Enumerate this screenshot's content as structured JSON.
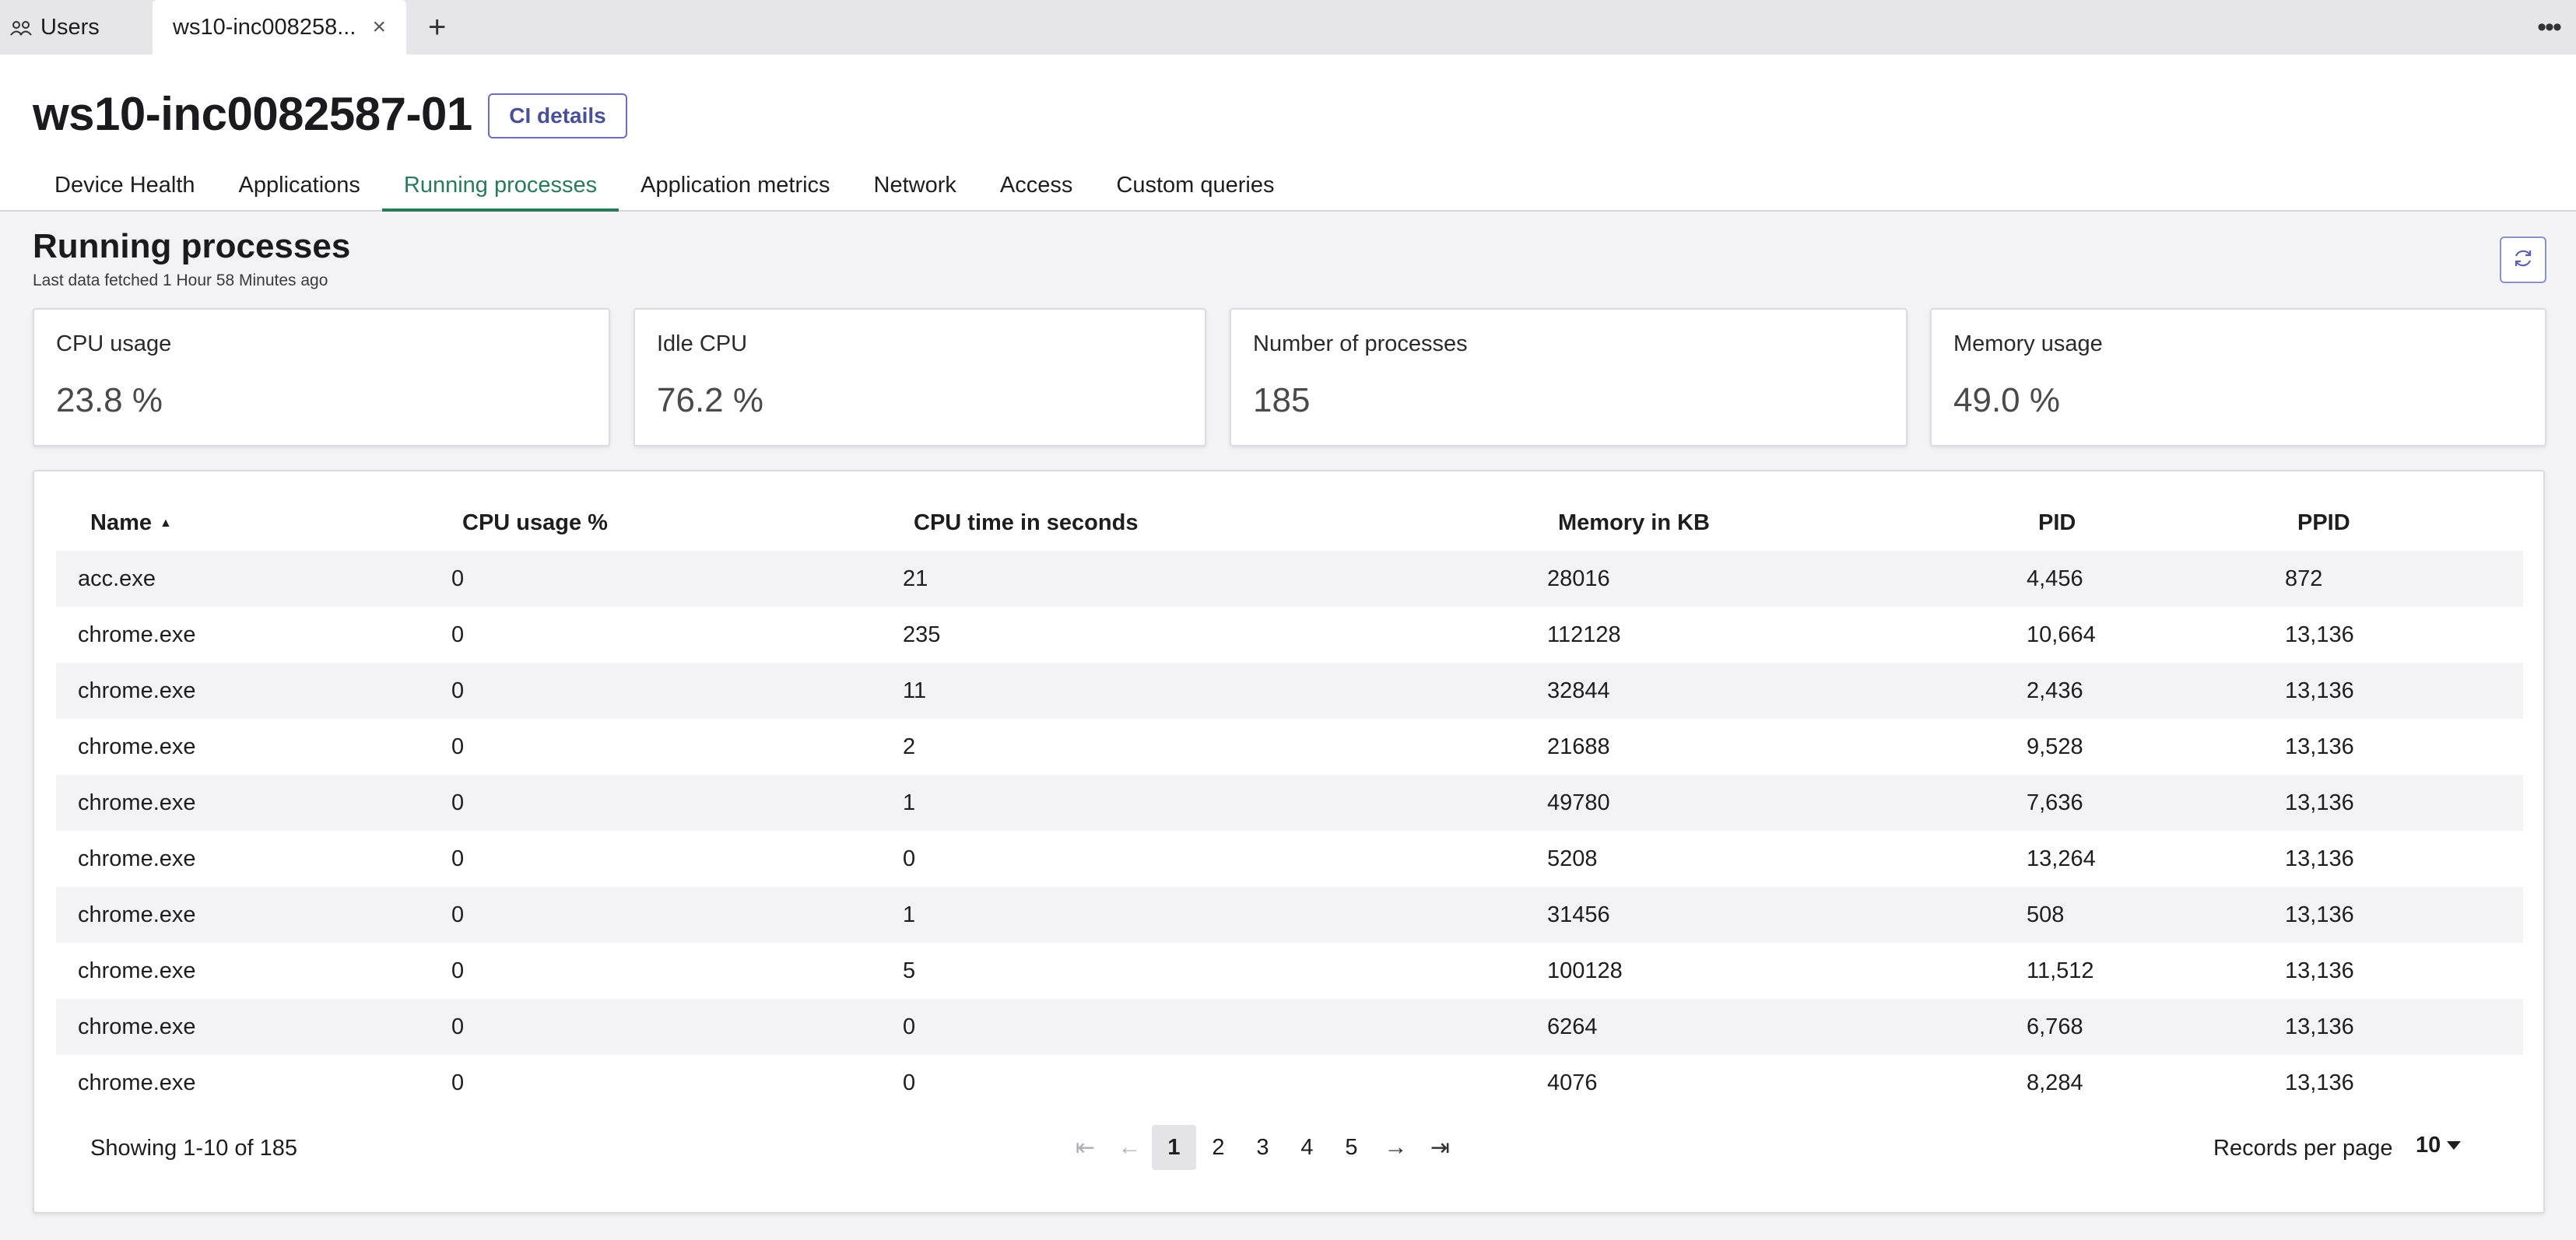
{
  "tabs": {
    "users_label": "Users",
    "active_label": "ws10-inc008258...",
    "close_glyph": "×",
    "add_glyph": "+",
    "more_glyph": "•••"
  },
  "header": {
    "title": "ws10-inc0082587-01",
    "ci_button": "CI details",
    "nav": [
      "Device Health",
      "Applications",
      "Running processes",
      "Application metrics",
      "Network",
      "Access",
      "Custom queries"
    ],
    "active_nav": "Running processes"
  },
  "section": {
    "title": "Running processes",
    "subtitle": "Last data fetched 1 Hour 58 Minutes ago"
  },
  "cards": [
    {
      "label": "CPU usage",
      "value": "23.8 %"
    },
    {
      "label": "Idle CPU",
      "value": "76.2 %"
    },
    {
      "label": "Number of processes",
      "value": "185"
    },
    {
      "label": "Memory usage",
      "value": "49.0 %"
    }
  ],
  "table": {
    "columns": [
      "Name",
      "CPU usage %",
      "CPU time in seconds",
      "Memory in KB",
      "PID",
      "PPID"
    ],
    "rows": [
      [
        "acc.exe",
        "0",
        "21",
        "28016",
        "4,456",
        "872"
      ],
      [
        "chrome.exe",
        "0",
        "235",
        "112128",
        "10,664",
        "13,136"
      ],
      [
        "chrome.exe",
        "0",
        "11",
        "32844",
        "2,436",
        "13,136"
      ],
      [
        "chrome.exe",
        "0",
        "2",
        "21688",
        "9,528",
        "13,136"
      ],
      [
        "chrome.exe",
        "0",
        "1",
        "49780",
        "7,636",
        "13,136"
      ],
      [
        "chrome.exe",
        "0",
        "0",
        "5208",
        "13,264",
        "13,136"
      ],
      [
        "chrome.exe",
        "0",
        "1",
        "31456",
        "508",
        "13,136"
      ],
      [
        "chrome.exe",
        "0",
        "5",
        "100128",
        "11,512",
        "13,136"
      ],
      [
        "chrome.exe",
        "0",
        "0",
        "6264",
        "6,768",
        "13,136"
      ],
      [
        "chrome.exe",
        "0",
        "0",
        "4076",
        "8,284",
        "13,136"
      ]
    ]
  },
  "footer": {
    "showing": "Showing 1-10 of 185",
    "pages": [
      "1",
      "2",
      "3",
      "4",
      "5"
    ],
    "current_page": "1",
    "records_label": "Records per page",
    "records_value": "10"
  },
  "colors": {
    "accent_active_tab": "#2a7a5a",
    "ci_button_border": "#6a6fb8"
  }
}
